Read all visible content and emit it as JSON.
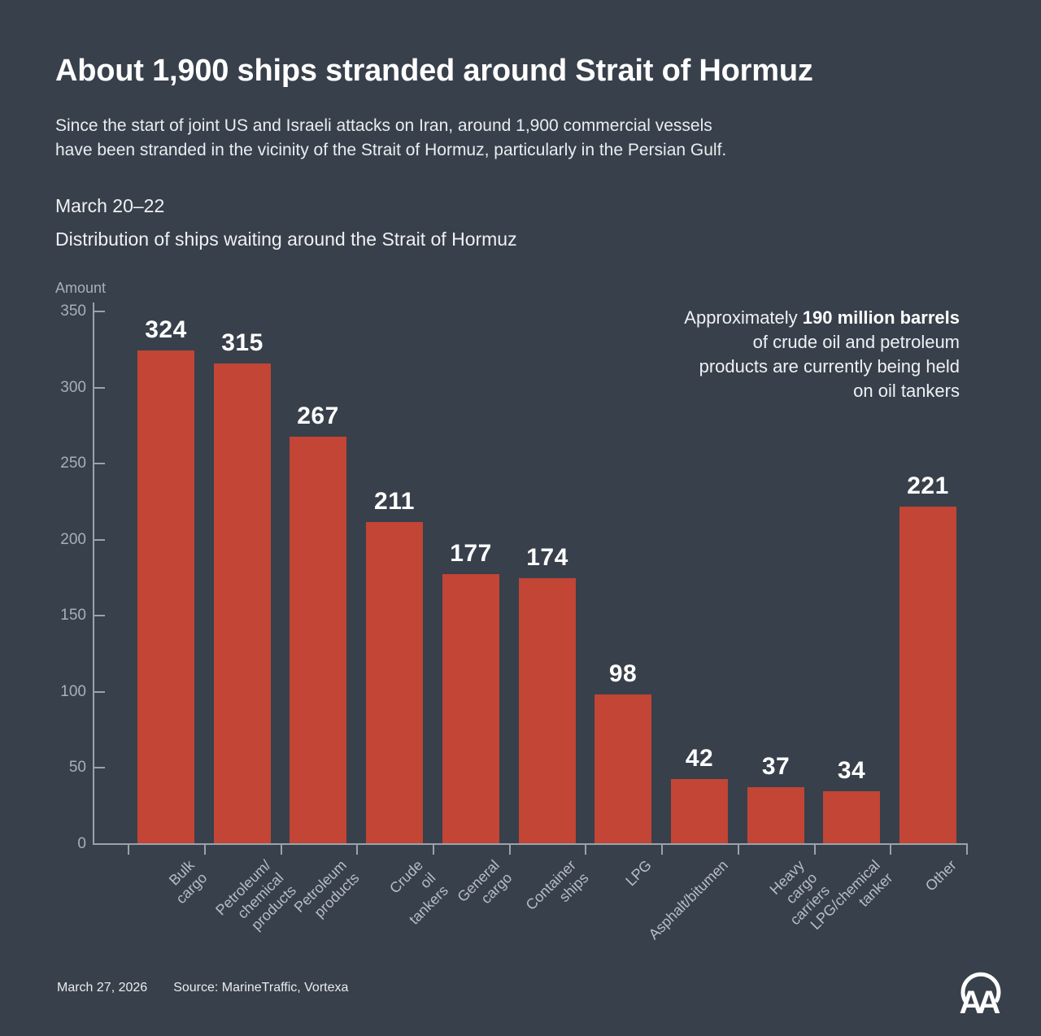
{
  "title": "About 1,900 ships stranded around Strait of Hormuz",
  "subtitle_lines": [
    "Since the start of joint US and Israeli attacks on Iran, around 1,900 commercial vessels",
    "have been stranded in the vicinity of the Strait of Hormuz, particularly in the Persian Gulf."
  ],
  "period_label": "March 20–22",
  "chart_heading": "Distribution of ships waiting around the Strait of Hormuz",
  "y_axis_title": "Amount",
  "annotation": {
    "line1_prefix": "Approximately ",
    "line1_bold": "190 million barrels",
    "lines": [
      "of crude oil and petroleum",
      "products are currently being held",
      "on oil tankers"
    ]
  },
  "footer": {
    "date": "March 27, 2026",
    "source": "Source: MarineTraffic, Vortexa"
  },
  "logo_text": "AA",
  "colors": {
    "background": "#38404b",
    "bar": "#c24535",
    "axis": "#9aa3ad",
    "tick_label": "#a7b0ba",
    "category_label": "#b6bdc7",
    "value_label": "#ffffff"
  },
  "chart_data": {
    "type": "bar",
    "title": "Distribution of ships waiting around the Strait of Hormuz",
    "xlabel": "",
    "ylabel": "Amount",
    "ylim": [
      0,
      350
    ],
    "yticks": [
      0,
      50,
      100,
      150,
      200,
      250,
      300,
      350
    ],
    "grid": false,
    "legend": "none",
    "categories": [
      "Bulk cargo",
      "Petroleum/\nchemical products",
      "Petroleum products",
      "Crude oil tankers",
      "General cargo",
      "Container ships",
      "LPG",
      "Asphalt/bitumen",
      "Heavy cargo carriers",
      "LPG/chemical tanker",
      "Other"
    ],
    "values": [
      324,
      315,
      267,
      211,
      177,
      174,
      98,
      42,
      37,
      34,
      221
    ],
    "bar_color": "#c24535"
  }
}
